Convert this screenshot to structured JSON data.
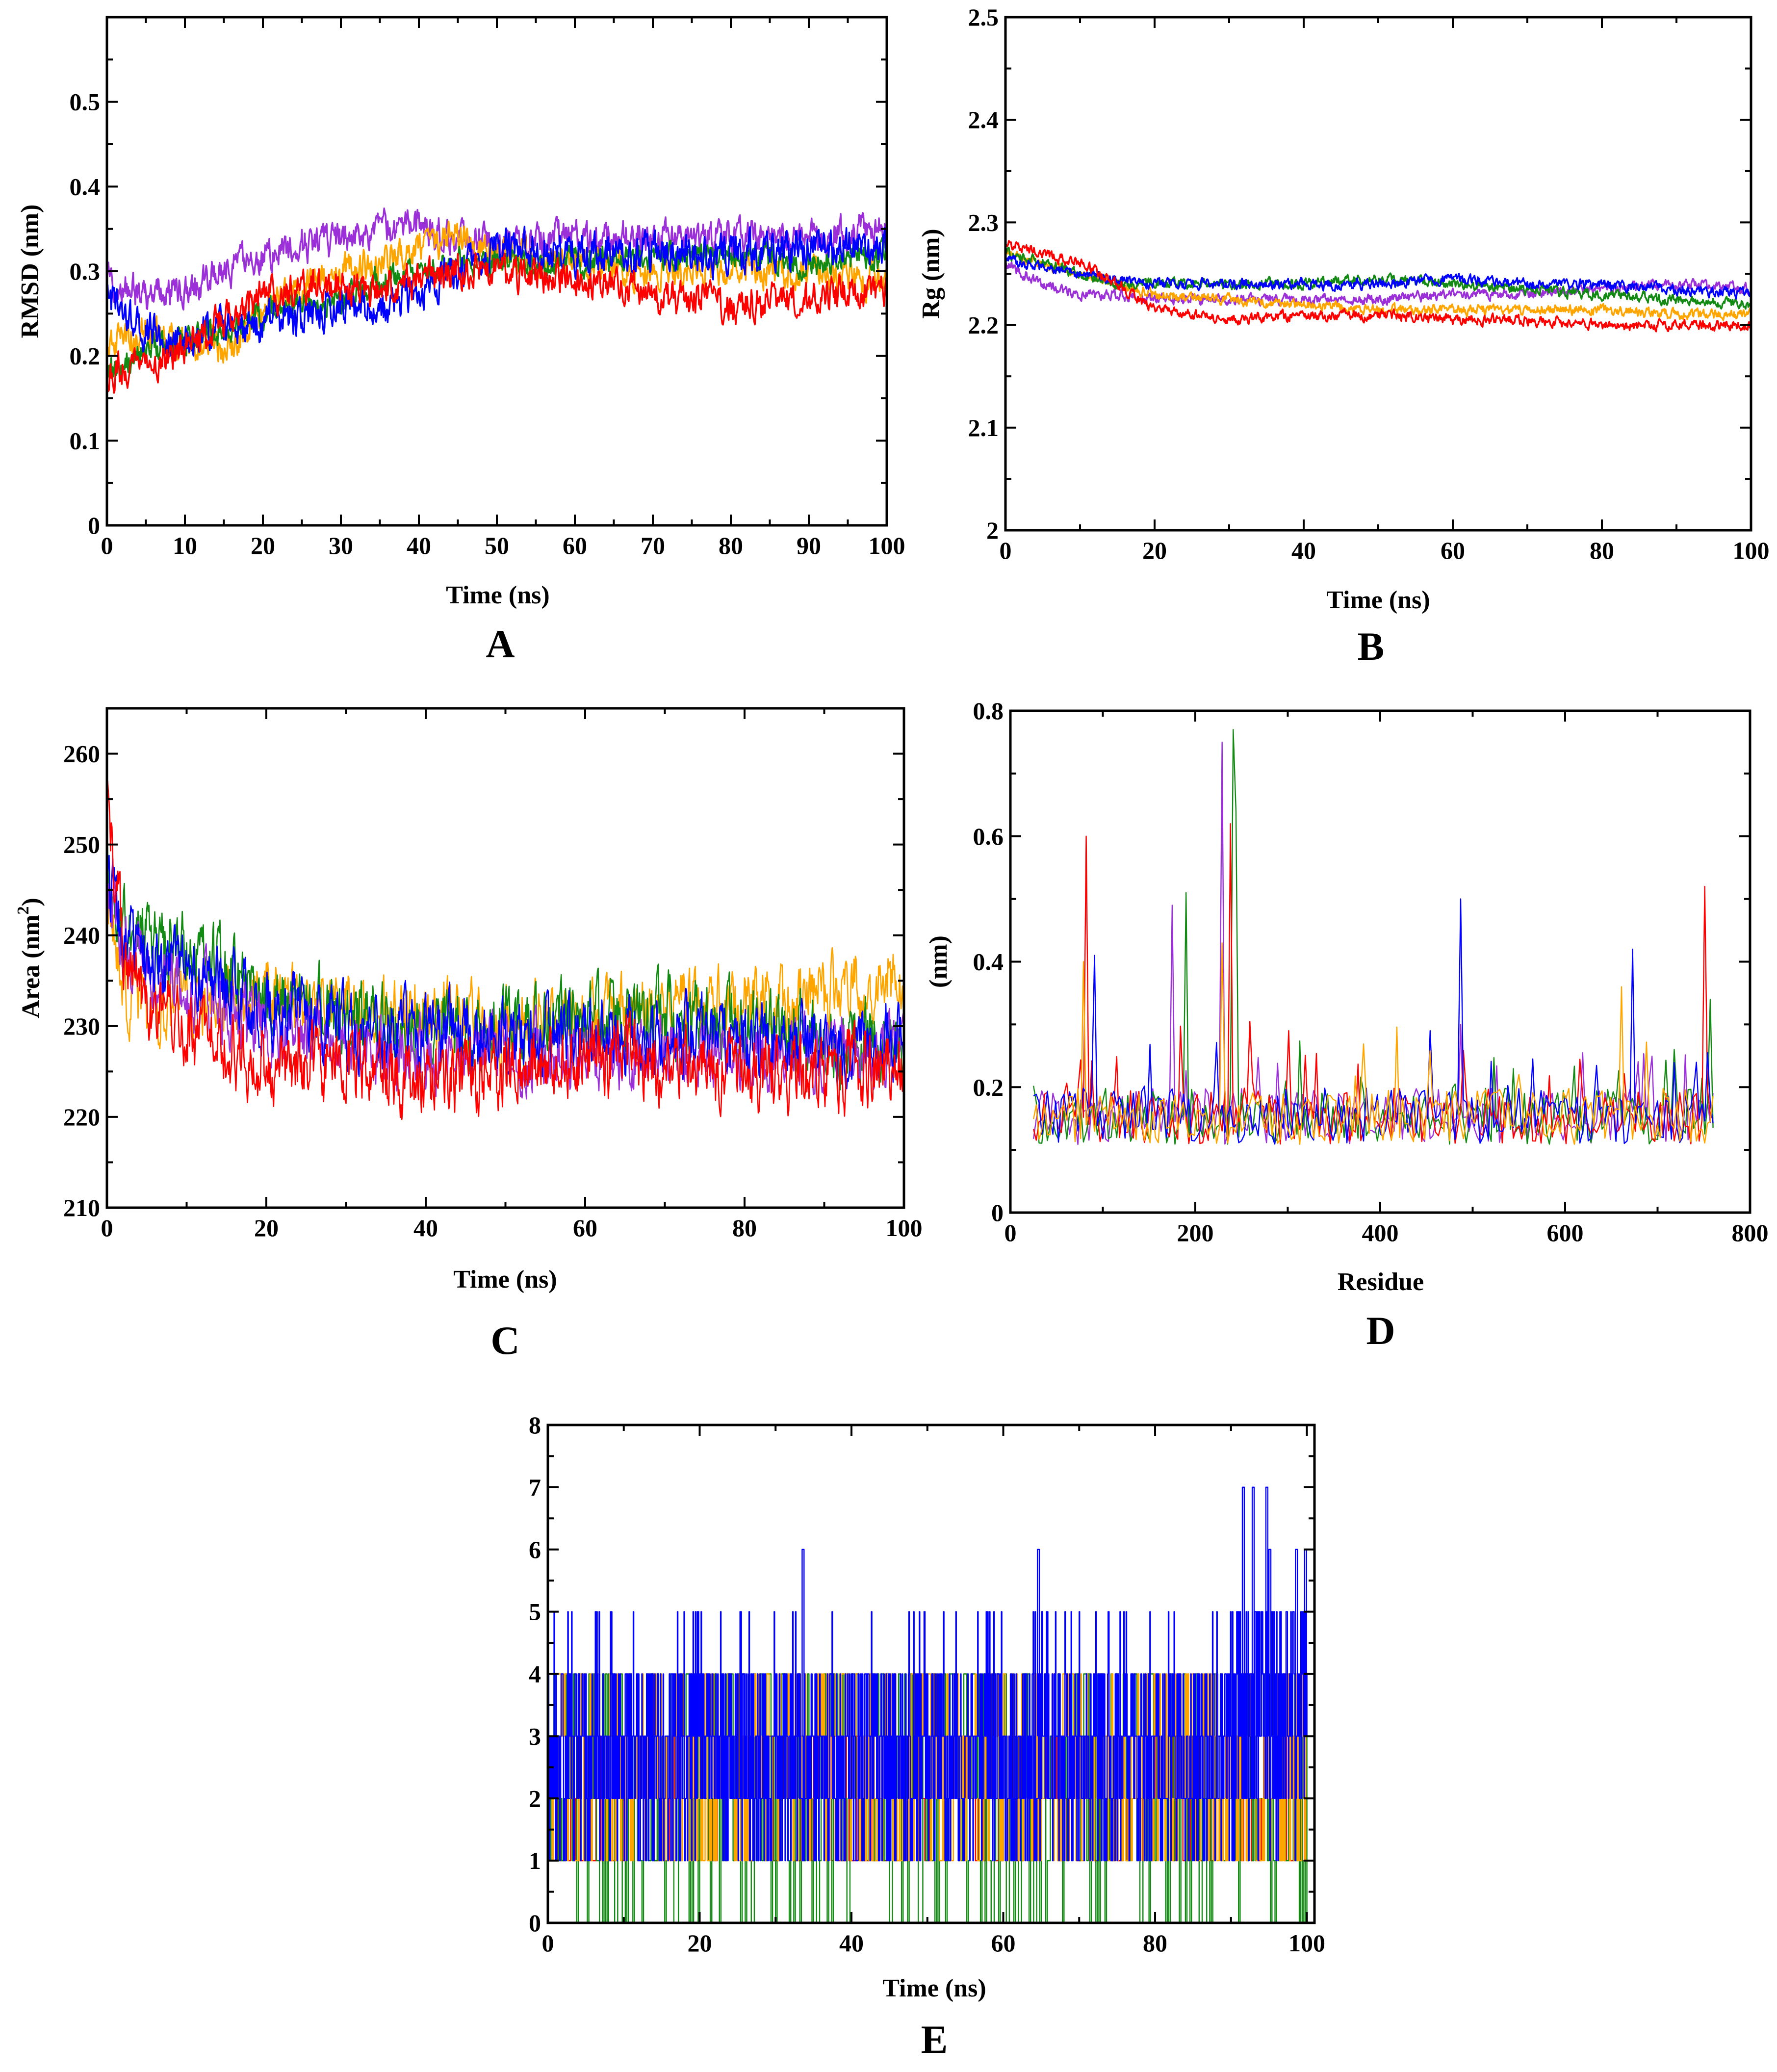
{
  "figure": {
    "series_colors": {
      "purple": "#9b30d9",
      "orange": "#ffa500",
      "green": "#138a13",
      "blue": "#0000ff",
      "red": "#ff0000"
    }
  },
  "chart_data": [
    {
      "id": "A",
      "type": "line",
      "panel_label": "A",
      "xlabel": "Time (ns)",
      "ylabel": "RMSD (nm)",
      "xlim": [
        0,
        100
      ],
      "ylim": [
        0,
        0.6
      ],
      "xticks": [
        0,
        10,
        20,
        30,
        40,
        50,
        60,
        70,
        80,
        90,
        100
      ],
      "yticks": [
        0,
        0.1,
        0.2,
        0.3,
        0.4,
        0.5
      ],
      "ytick_labels": [
        "0",
        "0.1",
        "0.2",
        "0.3",
        "0.4",
        "0.5"
      ],
      "series": [
        {
          "name": "purple",
          "color": "#9b30d9",
          "noise": 0.016,
          "x": [
            0,
            5,
            10,
            15,
            20,
            25,
            30,
            35,
            40,
            45,
            50,
            60,
            70,
            80,
            90,
            100
          ],
          "y": [
            0.29,
            0.27,
            0.28,
            0.3,
            0.32,
            0.33,
            0.34,
            0.35,
            0.35,
            0.34,
            0.33,
            0.34,
            0.34,
            0.34,
            0.34,
            0.35
          ]
        },
        {
          "name": "orange",
          "color": "#ffa500",
          "noise": 0.016,
          "x": [
            0,
            5,
            10,
            15,
            20,
            25,
            30,
            35,
            40,
            45,
            50,
            60,
            70,
            80,
            90,
            100
          ],
          "y": [
            0.21,
            0.23,
            0.22,
            0.21,
            0.25,
            0.28,
            0.3,
            0.31,
            0.33,
            0.34,
            0.32,
            0.31,
            0.3,
            0.3,
            0.3,
            0.29
          ]
        },
        {
          "name": "green",
          "color": "#138a13",
          "noise": 0.013,
          "x": [
            0,
            5,
            10,
            15,
            20,
            25,
            30,
            35,
            40,
            45,
            50,
            60,
            70,
            80,
            90,
            100
          ],
          "y": [
            0.18,
            0.21,
            0.22,
            0.23,
            0.25,
            0.26,
            0.27,
            0.29,
            0.3,
            0.31,
            0.31,
            0.31,
            0.32,
            0.32,
            0.31,
            0.32
          ]
        },
        {
          "name": "blue",
          "color": "#0000ff",
          "noise": 0.018,
          "x": [
            0,
            5,
            10,
            15,
            20,
            25,
            30,
            35,
            40,
            45,
            50,
            60,
            70,
            80,
            90,
            100
          ],
          "y": [
            0.27,
            0.23,
            0.22,
            0.23,
            0.24,
            0.25,
            0.26,
            0.25,
            0.28,
            0.3,
            0.33,
            0.32,
            0.32,
            0.32,
            0.33,
            0.33
          ]
        },
        {
          "name": "red",
          "color": "#ff0000",
          "noise": 0.016,
          "x": [
            0,
            5,
            10,
            15,
            20,
            25,
            30,
            35,
            40,
            45,
            50,
            60,
            70,
            80,
            90,
            100
          ],
          "y": [
            0.18,
            0.19,
            0.21,
            0.24,
            0.27,
            0.28,
            0.28,
            0.28,
            0.29,
            0.3,
            0.3,
            0.29,
            0.27,
            0.26,
            0.27,
            0.28
          ]
        }
      ]
    },
    {
      "id": "B",
      "type": "line",
      "panel_label": "B",
      "xlabel": "Time (ns)",
      "ylabel": "Rg (nm)",
      "xlim": [
        0,
        100
      ],
      "ylim": [
        2,
        2.5
      ],
      "xticks": [
        0,
        20,
        40,
        60,
        80,
        100
      ],
      "yticks": [
        2,
        2.1,
        2.2,
        2.3,
        2.4,
        2.5
      ],
      "ytick_labels": [
        "2",
        "2.1",
        "2.2",
        "2.3",
        "2.4",
        "2.5"
      ],
      "series": [
        {
          "name": "purple",
          "color": "#9b30d9",
          "noise": 0.004,
          "x": [
            0,
            5,
            10,
            15,
            20,
            30,
            40,
            50,
            60,
            70,
            80,
            90,
            100
          ],
          "y": [
            2.26,
            2.24,
            2.23,
            2.23,
            2.225,
            2.225,
            2.225,
            2.225,
            2.23,
            2.23,
            2.235,
            2.24,
            2.235
          ]
        },
        {
          "name": "orange",
          "color": "#ffa500",
          "noise": 0.004,
          "x": [
            0,
            5,
            10,
            15,
            20,
            30,
            40,
            50,
            60,
            70,
            80,
            90,
            100
          ],
          "y": [
            2.27,
            2.26,
            2.25,
            2.24,
            2.23,
            2.225,
            2.22,
            2.215,
            2.215,
            2.215,
            2.215,
            2.21,
            2.21
          ]
        },
        {
          "name": "green",
          "color": "#138a13",
          "noise": 0.004,
          "x": [
            0,
            5,
            10,
            15,
            20,
            30,
            40,
            50,
            60,
            70,
            80,
            90,
            100
          ],
          "y": [
            2.27,
            2.26,
            2.25,
            2.24,
            2.24,
            2.24,
            2.24,
            2.245,
            2.24,
            2.235,
            2.23,
            2.225,
            2.22
          ]
        },
        {
          "name": "blue",
          "color": "#0000ff",
          "noise": 0.004,
          "x": [
            0,
            5,
            10,
            15,
            20,
            30,
            40,
            50,
            60,
            70,
            80,
            90,
            100
          ],
          "y": [
            2.265,
            2.255,
            2.25,
            2.245,
            2.24,
            2.24,
            2.24,
            2.24,
            2.245,
            2.24,
            2.24,
            2.235,
            2.23
          ]
        },
        {
          "name": "red",
          "color": "#ff0000",
          "noise": 0.004,
          "x": [
            0,
            5,
            10,
            15,
            20,
            30,
            40,
            50,
            60,
            70,
            80,
            90,
            100
          ],
          "y": [
            2.28,
            2.27,
            2.26,
            2.24,
            2.215,
            2.205,
            2.21,
            2.21,
            2.205,
            2.205,
            2.2,
            2.2,
            2.2
          ]
        }
      ]
    },
    {
      "id": "C",
      "type": "line",
      "panel_label": "C",
      "xlabel": "Time (ns)",
      "ylabel_main": "Area (nm",
      "ylabel_sup": "2",
      "ylabel_end": ")",
      "xlim": [
        0,
        100
      ],
      "ylim": [
        210,
        265
      ],
      "xticks": [
        0,
        20,
        40,
        60,
        80,
        100
      ],
      "yticks": [
        210,
        220,
        230,
        240,
        250,
        260
      ],
      "ytick_labels": [
        "210",
        "220",
        "230",
        "240",
        "250",
        "260"
      ],
      "series": [
        {
          "name": "orange",
          "color": "#ffa500",
          "noise": 3.2,
          "x": [
            0,
            2,
            5,
            10,
            20,
            30,
            40,
            50,
            60,
            70,
            80,
            90,
            100
          ],
          "y": [
            245,
            234,
            232,
            233,
            233,
            232,
            231,
            230,
            231,
            232,
            232,
            233,
            236
          ]
        },
        {
          "name": "green",
          "color": "#138a13",
          "noise": 3.2,
          "x": [
            0,
            2,
            5,
            10,
            20,
            30,
            40,
            50,
            60,
            70,
            80,
            90,
            100
          ],
          "y": [
            248,
            241,
            240,
            238,
            234,
            231,
            230,
            230,
            231,
            231,
            230,
            229,
            228
          ]
        },
        {
          "name": "purple",
          "color": "#9b30d9",
          "noise": 3.0,
          "x": [
            0,
            2,
            5,
            10,
            20,
            30,
            40,
            50,
            60,
            70,
            80,
            90,
            100
          ],
          "y": [
            246,
            239,
            237,
            234,
            230,
            228,
            227,
            227,
            227,
            227,
            227,
            227,
            227
          ]
        },
        {
          "name": "blue",
          "color": "#0000ff",
          "noise": 3.2,
          "x": [
            0,
            2,
            5,
            10,
            20,
            30,
            40,
            50,
            60,
            70,
            80,
            90,
            100
          ],
          "y": [
            247,
            240,
            238,
            237,
            232,
            230,
            229,
            229,
            229,
            229,
            229,
            228,
            228
          ]
        },
        {
          "name": "red",
          "color": "#ff0000",
          "noise": 3.2,
          "x": [
            0,
            2,
            5,
            10,
            20,
            30,
            40,
            50,
            60,
            70,
            80,
            90,
            100
          ],
          "y": [
            257,
            238,
            233,
            229,
            226,
            226,
            224,
            225,
            226,
            226,
            225,
            225,
            226
          ]
        }
      ]
    },
    {
      "id": "D",
      "type": "line",
      "panel_label": "D",
      "xlabel": "Residue",
      "ylabel": "(nm)",
      "xlim": [
        0,
        800
      ],
      "ylim": [
        0,
        0.8
      ],
      "xticks": [
        0,
        200,
        400,
        600,
        800
      ],
      "yticks": [
        0,
        0.2,
        0.4,
        0.6,
        0.8
      ],
      "ytick_labels": [
        "0",
        "0.2",
        "0.4",
        "0.6",
        "0.8"
      ],
      "x_range": [
        25,
        760
      ],
      "baseline": 0.14,
      "noise": 0.045,
      "series": [
        {
          "name": "purple",
          "color": "#9b30d9",
          "peaks": [
            [
              176,
              0.49
            ],
            [
              229,
              0.75
            ],
            [
              487,
              0.3
            ]
          ]
        },
        {
          "name": "green",
          "color": "#138a13",
          "peaks": [
            [
              191,
              0.51
            ],
            [
              240,
              0.77
            ],
            [
              243,
              0.64
            ],
            [
              718,
              0.26
            ],
            [
              758,
              0.34
            ]
          ]
        },
        {
          "name": "red",
          "color": "#ff0000",
          "peaks": [
            [
              81,
              0.6
            ],
            [
              239,
              0.62
            ],
            [
              750,
              0.52
            ],
            [
              300,
              0.29
            ]
          ]
        },
        {
          "name": "blue",
          "color": "#0000ff",
          "peaks": [
            [
              90,
              0.41
            ],
            [
              487,
              0.5
            ],
            [
              674,
              0.42
            ],
            [
              455,
              0.29
            ]
          ]
        },
        {
          "name": "orange",
          "color": "#ffa500",
          "peaks": [
            [
              78,
              0.4
            ],
            [
              230,
              0.43
            ],
            [
              660,
              0.36
            ],
            [
              550,
              0.22
            ]
          ]
        }
      ]
    },
    {
      "id": "E",
      "type": "line",
      "panel_label": "E",
      "xlabel": "Time (ns)",
      "ylabel": "",
      "xlim": [
        0,
        101
      ],
      "ylim": [
        0,
        8
      ],
      "xticks": [
        0,
        20,
        40,
        60,
        80,
        100
      ],
      "yticks": [
        0,
        1,
        2,
        3,
        4,
        5,
        6,
        7,
        8
      ],
      "ytick_labels": [
        "0",
        "1",
        "2",
        "3",
        "4",
        "5",
        "6",
        "7",
        "8"
      ],
      "series": [
        {
          "name": "red",
          "color": "#ff0000",
          "levels": [
            1,
            2,
            3
          ],
          "count": 300
        },
        {
          "name": "green",
          "color": "#138a13",
          "levels": [
            0,
            1,
            2,
            3,
            4
          ],
          "count": 500
        },
        {
          "name": "orange",
          "color": "#ffa500",
          "levels": [
            1,
            2,
            3,
            4
          ],
          "count": 700
        },
        {
          "name": "blue",
          "color": "#0000ff",
          "levels": [
            1,
            2,
            3,
            4,
            5
          ],
          "count": 1600,
          "spikes": [
            [
              33.5,
              6
            ],
            [
              64.5,
              6
            ],
            [
              91.5,
              7
            ],
            [
              92.8,
              7
            ],
            [
              94.6,
              7
            ],
            [
              95,
              6
            ],
            [
              98.5,
              6
            ],
            [
              99.7,
              6
            ]
          ]
        }
      ]
    }
  ]
}
